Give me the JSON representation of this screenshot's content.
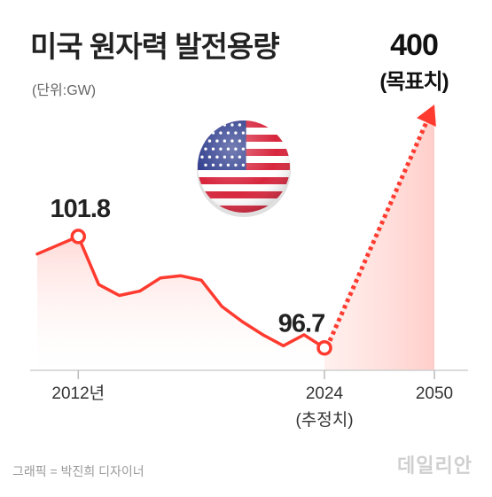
{
  "header": {
    "title": "미국 원자력 발전용량",
    "unit": "(단위:GW)"
  },
  "target": {
    "value": "400",
    "label": "(목표치)"
  },
  "footer": {
    "credit": "그래픽 = 박진희 디자이너",
    "brand": "데일리안"
  },
  "flag_icon": "us-flag-icon",
  "colors": {
    "line": "#ff3b30",
    "area": "#ffe3e1",
    "text": "#222222"
  },
  "chart_data": {
    "type": "line",
    "title": "미국 원자력 발전용량",
    "ylabel": "(단위:GW)",
    "x_ticks": [
      {
        "x": 2012,
        "label": "2012년"
      },
      {
        "x": 2024,
        "label": "2024",
        "sub": "(추정치)"
      },
      {
        "x": 2050,
        "label": "2050"
      }
    ],
    "series": [
      {
        "values_note_hidden": "",
        "x": [
          2010,
          2011,
          2012,
          2013,
          2014,
          2015,
          2016,
          2017,
          2018,
          2019,
          2020,
          2021,
          2022,
          2023,
          2024
        ],
        "y": [
          101.0,
          101.4,
          101.8,
          99.6,
          99.1,
          99.3,
          99.9,
          100.0,
          99.8,
          98.6,
          97.9,
          97.3,
          96.8,
          97.3,
          96.7
        ]
      }
    ],
    "projection": {
      "x": [
        2024,
        2050
      ],
      "y": [
        96.7,
        400
      ]
    },
    "annotations": [
      {
        "x": 2012,
        "y": 101.8,
        "label": "101.8"
      },
      {
        "x": 2024,
        "y": 96.7,
        "label": "96.7"
      }
    ]
  }
}
